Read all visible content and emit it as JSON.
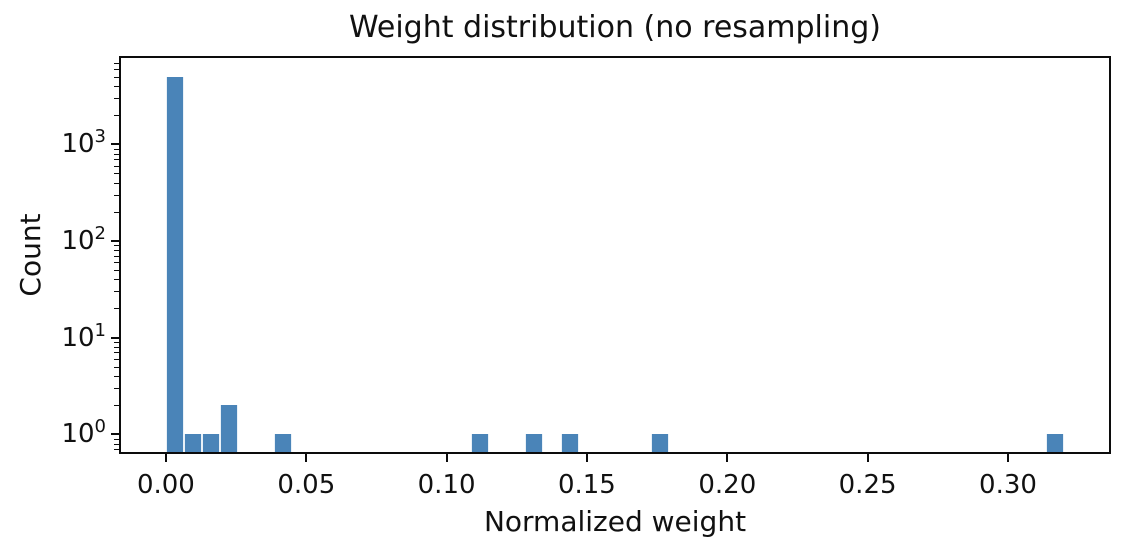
{
  "figure": {
    "background": "#ffffff"
  },
  "chart_data": {
    "type": "bar",
    "subtype": "histogram",
    "title": "Weight distribution (no resampling)",
    "xlabel": "Normalized weight",
    "ylabel": "Count",
    "xscale": "linear",
    "yscale": "log",
    "xlim": [
      -0.016,
      0.336
    ],
    "ylim": [
      0.653,
      7800
    ],
    "grid": false,
    "legend": null,
    "bar_color": "#4a84b8",
    "bar_edge_color": "#e9f1f8",
    "axis_color": "#0c0c0c",
    "text_color": "#111111",
    "bin_width": 0.0064,
    "bins": [
      {
        "x0": 0.0,
        "x1": 0.0064,
        "count": 4990
      },
      {
        "x0": 0.0064,
        "x1": 0.0128,
        "count": 1
      },
      {
        "x0": 0.0128,
        "x1": 0.0192,
        "count": 1
      },
      {
        "x0": 0.0192,
        "x1": 0.0256,
        "count": 2
      },
      {
        "x0": 0.0384,
        "x1": 0.0448,
        "count": 1
      },
      {
        "x0": 0.1088,
        "x1": 0.1152,
        "count": 1
      },
      {
        "x0": 0.128,
        "x1": 0.1344,
        "count": 1
      },
      {
        "x0": 0.1408,
        "x1": 0.1472,
        "count": 1
      },
      {
        "x0": 0.1728,
        "x1": 0.1792,
        "count": 1
      },
      {
        "x0": 0.3136,
        "x1": 0.32,
        "count": 1
      }
    ],
    "x_ticks": [
      {
        "value": 0.0,
        "label": "0.00"
      },
      {
        "value": 0.05,
        "label": "0.05"
      },
      {
        "value": 0.1,
        "label": "0.10"
      },
      {
        "value": 0.15,
        "label": "0.15"
      },
      {
        "value": 0.2,
        "label": "0.20"
      },
      {
        "value": 0.25,
        "label": "0.25"
      },
      {
        "value": 0.3,
        "label": "0.30"
      }
    ],
    "y_ticks": [
      {
        "value": 1,
        "base": "10",
        "exponent": "0"
      },
      {
        "value": 10,
        "base": "10",
        "exponent": "1"
      },
      {
        "value": 100,
        "base": "10",
        "exponent": "2"
      },
      {
        "value": 1000,
        "base": "10",
        "exponent": "3"
      }
    ],
    "y_minor_multiples": [
      2,
      3,
      4,
      5,
      6,
      7,
      8,
      9
    ],
    "y_minor_decades": [
      -1,
      0,
      1,
      2,
      3
    ]
  }
}
